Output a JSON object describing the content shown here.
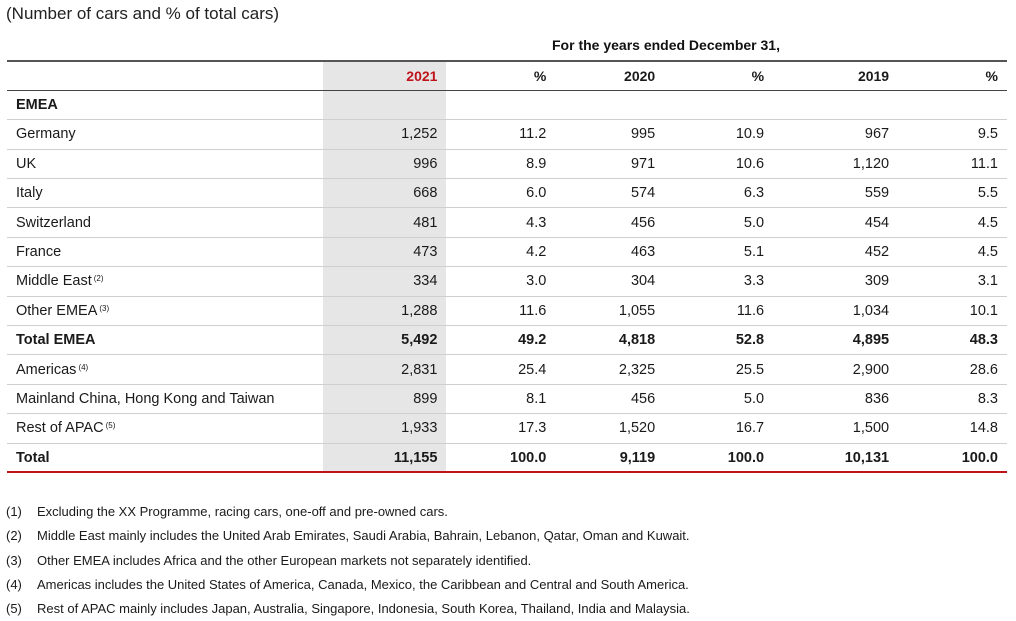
{
  "subtitle": "(Number of cars and % of total cars)",
  "period_header": "For the years ended December 31,",
  "columns": [
    "",
    "2021",
    "%",
    "2020",
    "%",
    "2019",
    "%"
  ],
  "section_label": "EMEA",
  "rows": [
    {
      "label": "Germany",
      "sup": "",
      "values": [
        "1,252",
        "11.2",
        "995",
        "10.9",
        "967",
        "9.5"
      ]
    },
    {
      "label": "UK",
      "sup": "",
      "values": [
        "996",
        "8.9",
        "971",
        "10.6",
        "1,120",
        "11.1"
      ]
    },
    {
      "label": "Italy",
      "sup": "",
      "values": [
        "668",
        "6.0",
        "574",
        "6.3",
        "559",
        "5.5"
      ]
    },
    {
      "label": "Switzerland",
      "sup": "",
      "values": [
        "481",
        "4.3",
        "456",
        "5.0",
        "454",
        "4.5"
      ]
    },
    {
      "label": "France",
      "sup": "",
      "values": [
        "473",
        "4.2",
        "463",
        "5.1",
        "452",
        "4.5"
      ]
    },
    {
      "label": "Middle East",
      "sup": "(2)",
      "values": [
        "334",
        "3.0",
        "304",
        "3.3",
        "309",
        "3.1"
      ]
    },
    {
      "label": "Other EMEA",
      "sup": "(3)",
      "values": [
        "1,288",
        "11.6",
        "1,055",
        "11.6",
        "1,034",
        "10.1"
      ]
    },
    {
      "label": "Total EMEA",
      "sup": "",
      "bold": true,
      "values": [
        "5,492",
        "49.2",
        "4,818",
        "52.8",
        "4,895",
        "48.3"
      ]
    },
    {
      "label": "Americas",
      "sup": "(4)",
      "values": [
        "2,831",
        "25.4",
        "2,325",
        "25.5",
        "2,900",
        "28.6"
      ]
    },
    {
      "label": "Mainland China, Hong Kong and Taiwan",
      "sup": "",
      "values": [
        "899",
        "8.1",
        "456",
        "5.0",
        "836",
        "8.3"
      ]
    },
    {
      "label": "Rest of APAC",
      "sup": "(5)",
      "values": [
        "1,933",
        "17.3",
        "1,520",
        "16.7",
        "1,500",
        "14.8"
      ]
    },
    {
      "label": "Total",
      "sup": "",
      "bold": true,
      "values": [
        "11,155",
        "100.0",
        "9,119",
        "100.0",
        "10,131",
        "100.0"
      ]
    }
  ],
  "footnotes": [
    {
      "num": "(1)",
      "text": "Excluding the XX Programme, racing cars, one-off and pre-owned cars."
    },
    {
      "num": "(2)",
      "text": "Middle East mainly includes the United Arab Emirates, Saudi Arabia, Bahrain, Lebanon, Qatar, Oman and Kuwait."
    },
    {
      "num": "(3)",
      "text": "Other EMEA includes Africa and the other European markets not separately identified."
    },
    {
      "num": "(4)",
      "text": "Americas includes the United States of America, Canada, Mexico, the Caribbean and Central and South America."
    },
    {
      "num": "(5)",
      "text": "Rest of APAC mainly includes Japan, Australia, Singapore, Indonesia, South Korea, Thailand, India and Malaysia."
    }
  ],
  "colors": {
    "accent_red": "#c0121a",
    "highlight_column": "#e6e6e6"
  }
}
